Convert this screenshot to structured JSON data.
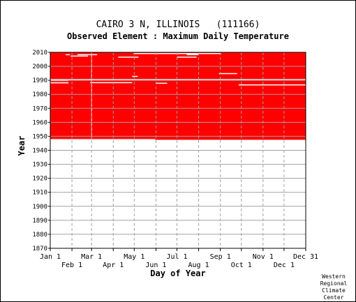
{
  "chart_data": {
    "type": "heatmap",
    "title": "CAIRO 3 N, ILLINOIS   (111166)",
    "subtitle": "Observed Element : Maximum Daily Temperature",
    "xlabel": "Day of Year",
    "ylabel": "Year",
    "x_tick_labels_top": [
      "Jan 1",
      "Mar 1",
      "May 1",
      "Jul 1",
      "Sep 1",
      "Nov 1",
      "Dec 31"
    ],
    "x_tick_labels_bottom": [
      "Feb 1",
      "Apr 1",
      "Jun 1",
      "Aug 1",
      "Oct 1",
      "Dec 1"
    ],
    "y_tick_labels": [
      "2010",
      "2000",
      "1990",
      "1980",
      "1970",
      "1960",
      "1950",
      "1940",
      "1930",
      "1920",
      "1910",
      "1900",
      "1890",
      "1880",
      "1870"
    ],
    "xlim": [
      1,
      366
    ],
    "ylim": [
      1870,
      2010
    ],
    "data_color": "#ff0000",
    "coverage_blocks": [
      {
        "year_start": 1948.5,
        "year_end": 2010,
        "day_start": 1,
        "day_end": 366
      }
    ],
    "coverage_start_partial": [
      {
        "year_start": 1948.5,
        "year_end": 1948.5,
        "day_start": 1,
        "day_end": 151
      },
      {
        "year_start": 1947.5,
        "year_end": 1948.5,
        "day_start": 151,
        "day_end": 366
      }
    ],
    "missing_segments": [
      {
        "year": 2008.3,
        "day_start": 23,
        "day_end": 29
      },
      {
        "year": 2008.3,
        "day_start": 40,
        "day_end": 68
      },
      {
        "year": 2007.3,
        "day_start": 30,
        "day_end": 55
      },
      {
        "year": 2006.5,
        "day_start": 98,
        "day_end": 127
      },
      {
        "year": 2009.1,
        "day_start": 120,
        "day_end": 245
      },
      {
        "year": 2006.5,
        "day_start": 182,
        "day_end": 210
      },
      {
        "year": 2008.3,
        "day_start": 196,
        "day_end": 213
      },
      {
        "year": 1994.8,
        "day_start": 242,
        "day_end": 268
      },
      {
        "year": 1992.8,
        "day_start": 118,
        "day_end": 126
      },
      {
        "year": 1990.5,
        "day_start": 1,
        "day_end": 366
      },
      {
        "year": 1989.8,
        "day_start": 1,
        "day_end": 27
      },
      {
        "year": 1988.2,
        "day_start": 1,
        "day_end": 27
      },
      {
        "year": 1988.3,
        "day_start": 58,
        "day_end": 118
      },
      {
        "year": 1987.9,
        "day_start": 152,
        "day_end": 168
      },
      {
        "year": 1986.7,
        "day_start": 270,
        "day_end": 366
      }
    ],
    "missing_columns": [
      {
        "day": 60,
        "year_start": 1948.5,
        "year_end": 2010
      }
    ],
    "grid": true,
    "footer": [
      "Western",
      "Regional",
      "Climate",
      "Center"
    ]
  }
}
